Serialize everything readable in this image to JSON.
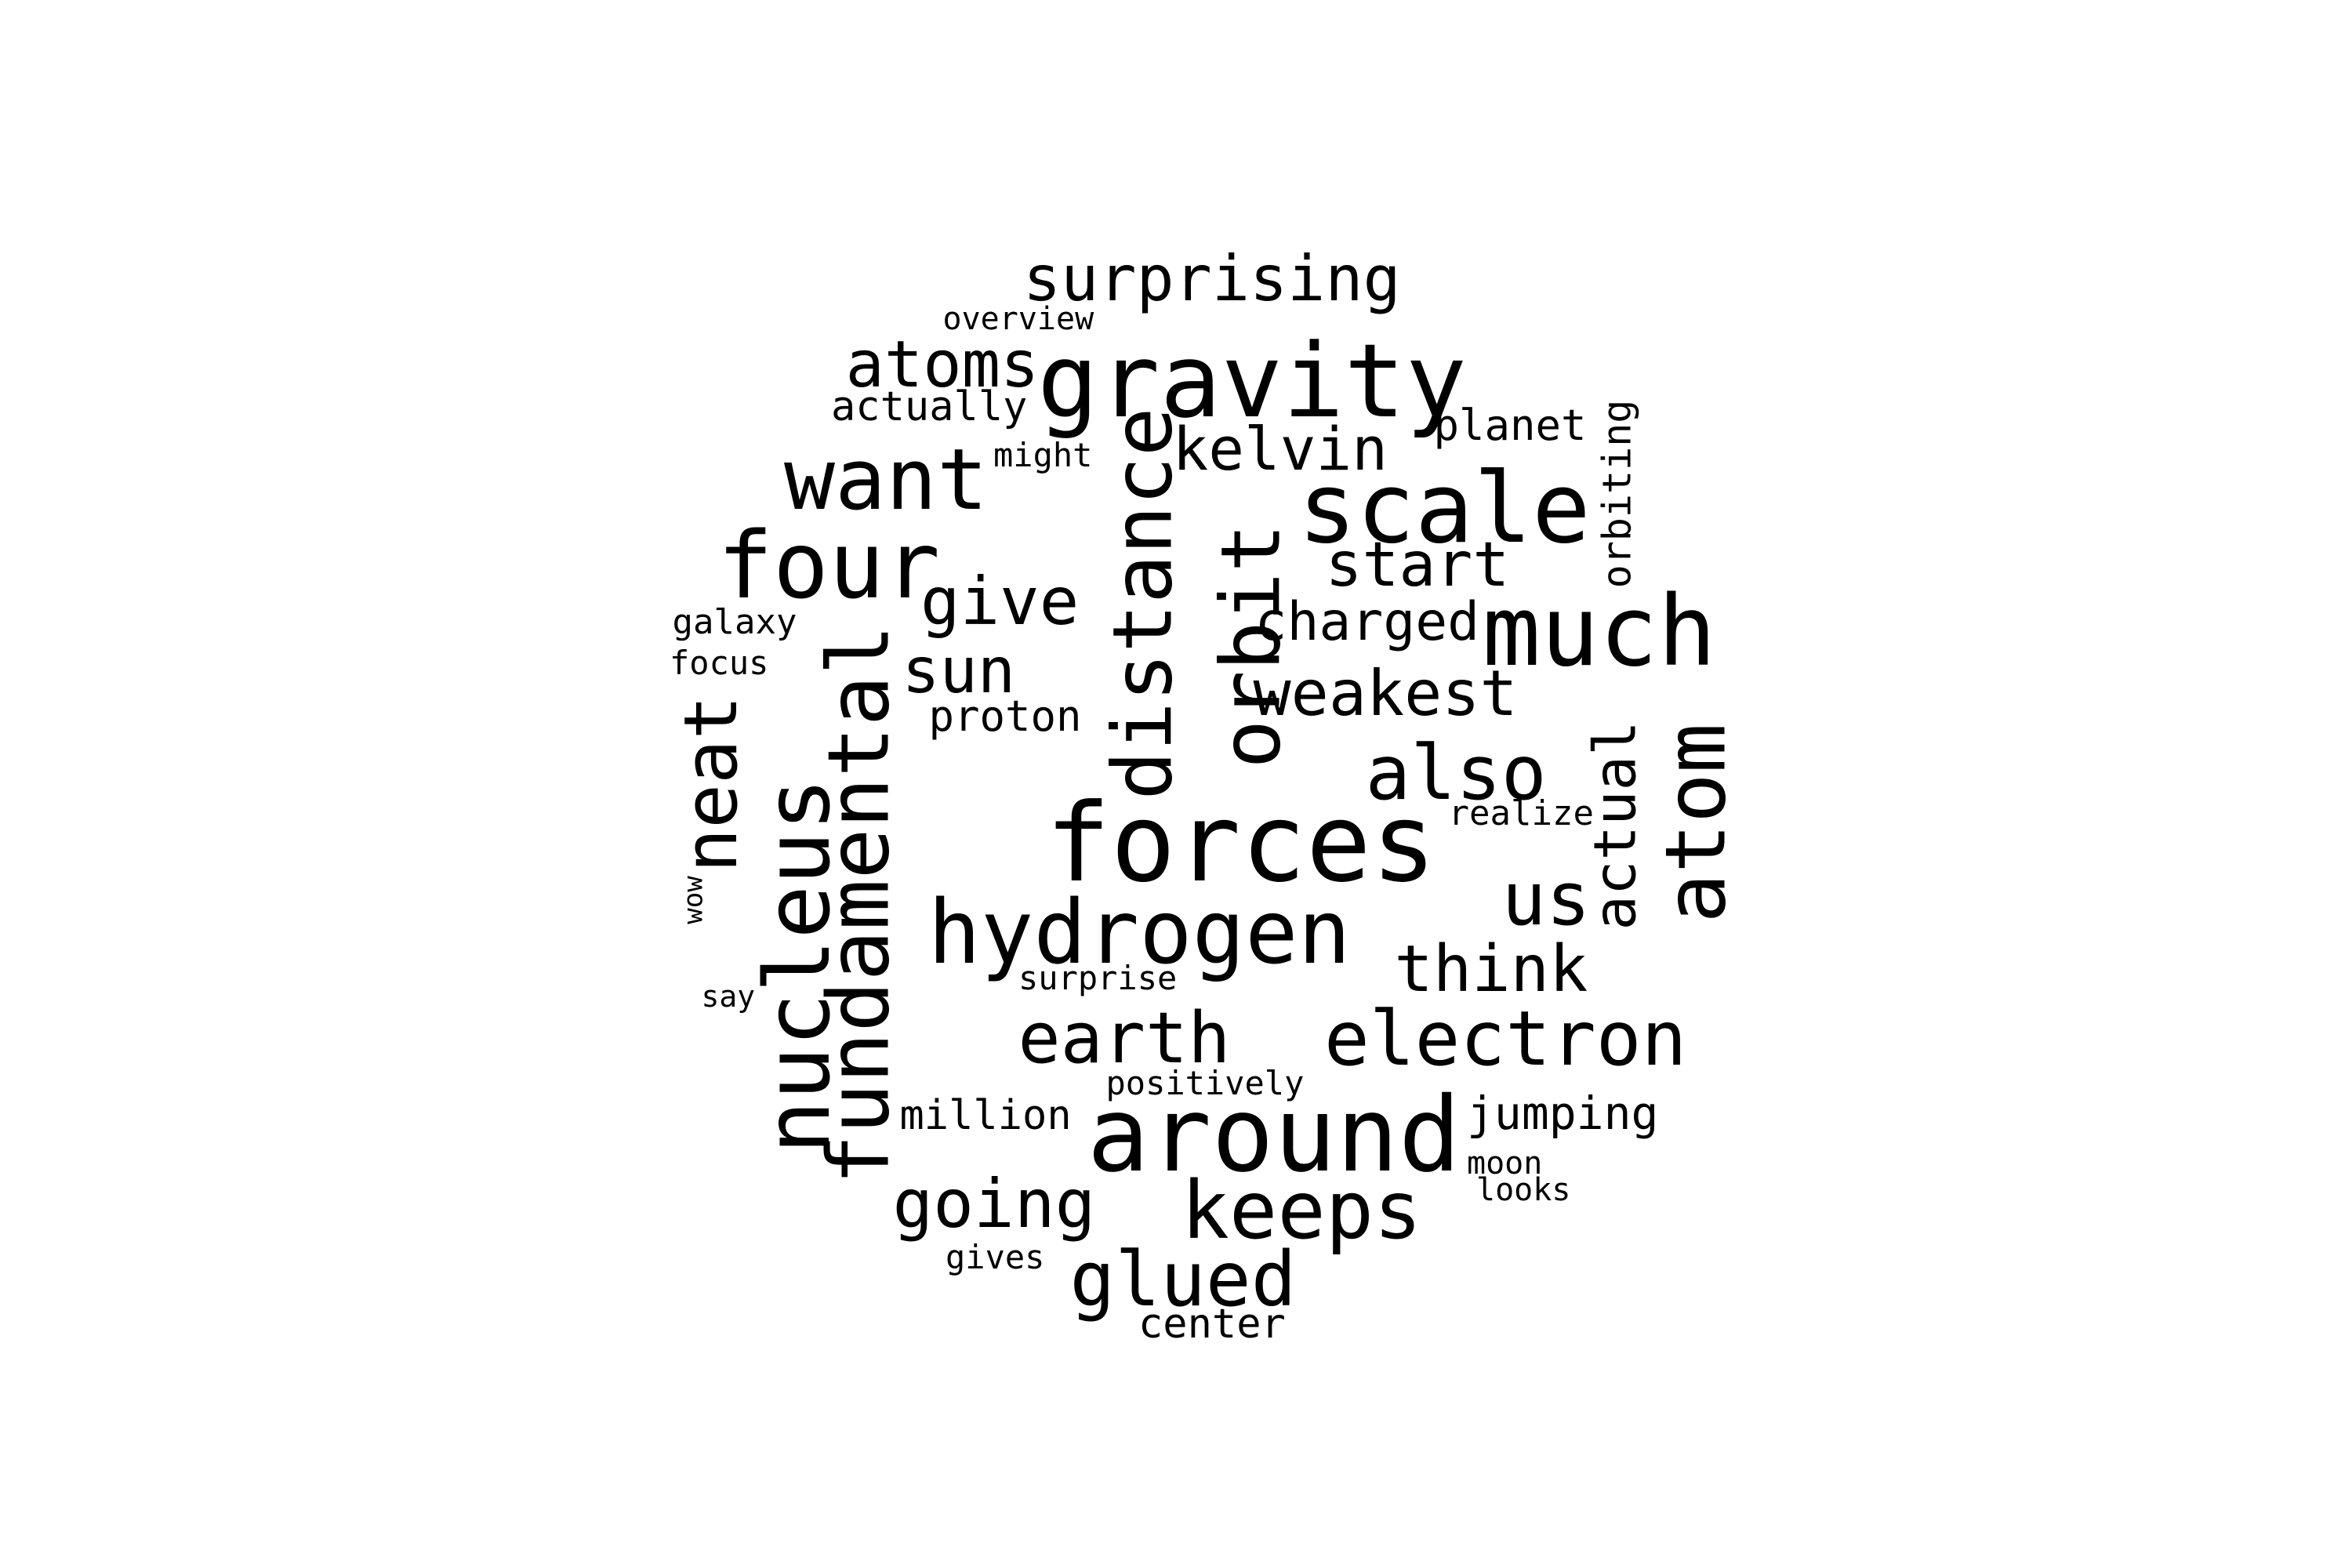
{
  "word_cloud": {
    "text_color": "#000000",
    "background_color": "#ffffff",
    "words": [
      {
        "text": "surprising",
        "orientation": "horizontal"
      },
      {
        "text": "overview",
        "orientation": "horizontal"
      },
      {
        "text": "atoms",
        "orientation": "horizontal"
      },
      {
        "text": "gravity",
        "orientation": "horizontal"
      },
      {
        "text": "actually",
        "orientation": "horizontal"
      },
      {
        "text": "planet",
        "orientation": "horizontal"
      },
      {
        "text": "orbiting",
        "orientation": "vertical"
      },
      {
        "text": "want",
        "orientation": "horizontal"
      },
      {
        "text": "might",
        "orientation": "horizontal"
      },
      {
        "text": "kelvin",
        "orientation": "horizontal"
      },
      {
        "text": "distance",
        "orientation": "vertical"
      },
      {
        "text": "scale",
        "orientation": "horizontal"
      },
      {
        "text": "four",
        "orientation": "horizontal"
      },
      {
        "text": "start",
        "orientation": "horizontal"
      },
      {
        "text": "orbit",
        "orientation": "vertical"
      },
      {
        "text": "give",
        "orientation": "horizontal"
      },
      {
        "text": "galaxy",
        "orientation": "horizontal"
      },
      {
        "text": "charged",
        "orientation": "horizontal"
      },
      {
        "text": "much",
        "orientation": "horizontal"
      },
      {
        "text": "focus",
        "orientation": "horizontal"
      },
      {
        "text": "sun",
        "orientation": "horizontal"
      },
      {
        "text": "fundamental",
        "orientation": "vertical"
      },
      {
        "text": "weakest",
        "orientation": "horizontal"
      },
      {
        "text": "neat",
        "orientation": "vertical"
      },
      {
        "text": "proton",
        "orientation": "horizontal"
      },
      {
        "text": "nucleus",
        "orientation": "vertical"
      },
      {
        "text": "also",
        "orientation": "horizontal"
      },
      {
        "text": "actual",
        "orientation": "vertical"
      },
      {
        "text": "atom",
        "orientation": "vertical"
      },
      {
        "text": "realize",
        "orientation": "horizontal"
      },
      {
        "text": "forces",
        "orientation": "horizontal"
      },
      {
        "text": "wow",
        "orientation": "vertical"
      },
      {
        "text": "us",
        "orientation": "horizontal"
      },
      {
        "text": "hydrogen",
        "orientation": "horizontal"
      },
      {
        "text": "think",
        "orientation": "horizontal"
      },
      {
        "text": "say",
        "orientation": "horizontal"
      },
      {
        "text": "surprise",
        "orientation": "horizontal"
      },
      {
        "text": "earth",
        "orientation": "horizontal"
      },
      {
        "text": "electron",
        "orientation": "horizontal"
      },
      {
        "text": "positively",
        "orientation": "horizontal"
      },
      {
        "text": "million",
        "orientation": "horizontal"
      },
      {
        "text": "around",
        "orientation": "horizontal"
      },
      {
        "text": "jumping",
        "orientation": "horizontal"
      },
      {
        "text": "moon",
        "orientation": "horizontal"
      },
      {
        "text": "looks",
        "orientation": "horizontal"
      },
      {
        "text": "going",
        "orientation": "horizontal"
      },
      {
        "text": "keeps",
        "orientation": "horizontal"
      },
      {
        "text": "gives",
        "orientation": "horizontal"
      },
      {
        "text": "glued",
        "orientation": "horizontal"
      },
      {
        "text": "center",
        "orientation": "horizontal"
      }
    ]
  }
}
